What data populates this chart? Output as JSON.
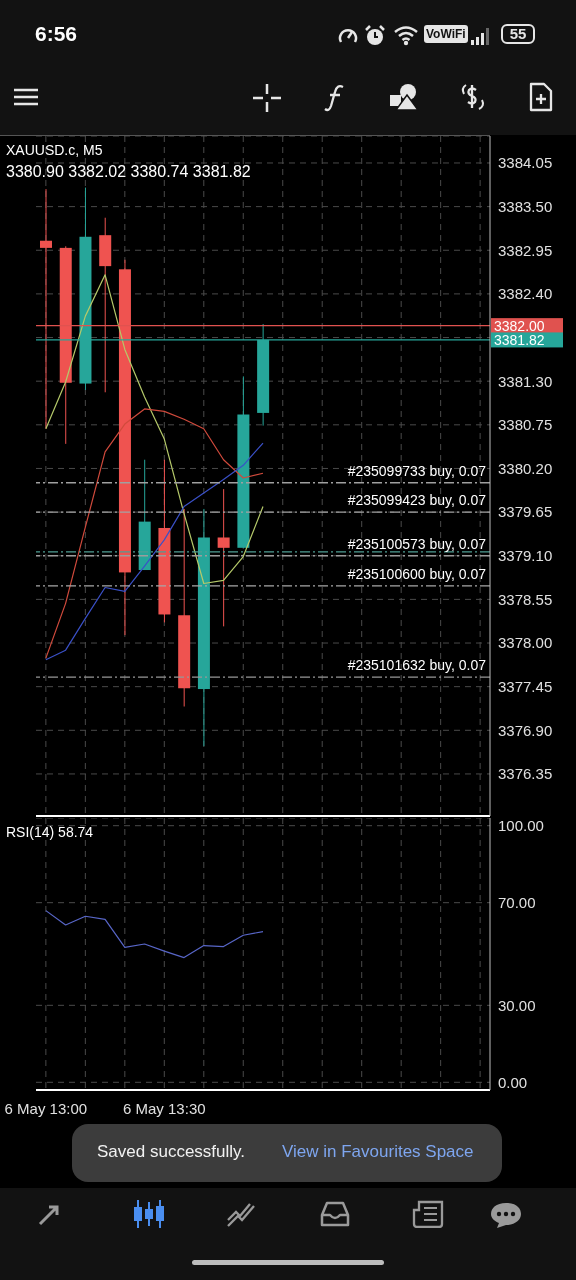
{
  "chart_data": [
    {
      "type": "candlestick",
      "title": "XAUUSD.c, M5",
      "subtitle": "3380.90 3382.02 3380.74 3381.82",
      "categories": [
        null,
        null,
        null,
        null,
        null,
        null,
        null,
        null,
        null,
        null,
        null,
        null,
        null,
        null,
        null,
        null,
        null,
        null,
        null,
        null,
        null,
        null,
        null
      ],
      "ohlc": [
        [
          3383.07,
          3383.72,
          3380.7,
          3382.98
        ],
        [
          3382.98,
          3383.0,
          3380.51,
          3381.28
        ],
        [
          3381.27,
          3383.74,
          3381.19,
          3383.12
        ],
        [
          3383.14,
          3383.36,
          3381.16,
          3382.75
        ],
        [
          3382.71,
          3382.83,
          3378.1,
          3378.89
        ],
        [
          3378.92,
          3380.31,
          3378.92,
          3379.53
        ],
        [
          3379.45,
          3380.31,
          3378.26,
          3378.36
        ],
        [
          3378.35,
          3379.69,
          3377.2,
          3377.43
        ],
        [
          3377.42,
          3379.69,
          3376.7,
          3379.33
        ],
        [
          3379.33,
          3379.94,
          3378.21,
          3379.2
        ],
        [
          3379.2,
          3381.36,
          3379.2,
          3380.88
        ],
        [
          3380.9,
          3382.02,
          3380.74,
          3381.82
        ],
        null,
        null,
        null,
        null,
        null,
        null,
        null,
        null,
        null,
        null,
        null
      ],
      "colors": [
        "#ef5350",
        "#ef5350",
        "#26a69a",
        "#ef5350",
        "#ef5350",
        "#26a69a",
        "#ef5350",
        "#ef5350",
        "#26a69a",
        "#ef5350",
        "#26a69a",
        "#26a69a",
        null,
        null,
        null,
        null,
        null,
        null,
        null,
        null,
        null,
        null,
        null
      ],
      "series": [
        {
          "type": "line",
          "color": "#b5c96a",
          "values": [
            3380.7,
            3381.29,
            3382.12,
            3382.64,
            3381.7,
            3381.1,
            3380.57,
            3379.63,
            3378.75,
            3378.79,
            3379.09,
            3379.72,
            null,
            null,
            null,
            null,
            null,
            null,
            null,
            null,
            null,
            null,
            null
          ]
        },
        {
          "type": "line",
          "color": "#d04a3c",
          "values": [
            3377.81,
            3378.5,
            3379.46,
            3380.41,
            3380.76,
            3380.95,
            3380.92,
            3380.82,
            3380.7,
            3380.31,
            3380.08,
            3380.14,
            null,
            null,
            null,
            null,
            null,
            null,
            null,
            null,
            null,
            null,
            null
          ]
        },
        {
          "type": "line",
          "color": "#3a50c8",
          "values": [
            3377.79,
            3377.91,
            3378.31,
            3378.7,
            3378.65,
            3378.97,
            3379.3,
            3379.72,
            3379.89,
            3380.06,
            3380.24,
            3380.52,
            null,
            null,
            null,
            null,
            null,
            null,
            null,
            null,
            null,
            null,
            null
          ]
        }
      ],
      "ylim": [
        3375.82,
        3384.39
      ],
      "yticks": [
        3384.05,
        {
          "value": 3383.5,
          "label": "3383.50"
        },
        3382.95,
        {
          "value": 3382.4,
          "label": "3382.40"
        },
        {
          "value": 3381.85,
          "label": null
        },
        {
          "value": 3381.3,
          "label": "3381.30"
        },
        3380.75,
        {
          "value": 3380.2,
          "label": "3380.20"
        },
        3379.65,
        {
          "value": 3379.1,
          "label": "3379.10"
        },
        3378.55,
        {
          "value": 3378,
          "label": "3378.00"
        },
        3377.45,
        {
          "value": 3376.9,
          "label": "3376.90"
        },
        3376.35
      ],
      "grid": true,
      "tick_labels": "y",
      "ref_lines": [
        {
          "axis": "y",
          "value": 3382,
          "label": "3382.00",
          "color": "#e0524f",
          "line_style": "solid"
        },
        {
          "axis": "y",
          "value": 3381.82,
          "label": "3381.82",
          "color": "#26a69a",
          "line_style": "solid"
        },
        {
          "axis": "y",
          "value": 3380.02,
          "label": "#235099733 buy, 0.07",
          "color": "#a0a0a0",
          "line_style": "dashed"
        },
        {
          "axis": "y",
          "value": 3379.65,
          "label": "#235099423 buy, 0.07",
          "color": "#a4a4a4",
          "line_style": "dashed"
        },
        {
          "axis": "y",
          "value": 3379.15,
          "color": "#4f9e94",
          "line_style": "dashed"
        },
        {
          "axis": "y",
          "value": 3379.1,
          "label": "#235100573 buy, 0.07",
          "color": "#9c9c9c",
          "line_style": "dashed"
        },
        {
          "axis": "y",
          "value": 3378.72,
          "label": "#235100600 buy, 0.07",
          "color": "#a8a8a8",
          "line_style": "dashed"
        },
        {
          "axis": "y",
          "value": 3377.57,
          "label": "#235101632 buy, 0.07",
          "color": "#989898",
          "line_style": "dashed"
        }
      ],
      "annotations": [
        "6:56",
        "VoWiFi",
        "55"
      ]
    },
    {
      "type": "line",
      "title": "RSI(14) 58.74",
      "categories": [
        "6 May 13:00",
        null,
        null,
        null,
        null,
        null,
        "6 May 13:30",
        null,
        null,
        null,
        null,
        null,
        null,
        null,
        null,
        null,
        null,
        null,
        null,
        null,
        null,
        null,
        null
      ],
      "series": [
        {
          "color": "#5866c8",
          "values": [
            66.9,
            61.3,
            64.7,
            63.5,
            52.6,
            53.9,
            51.1,
            48.6,
            53.3,
            52.9,
            57.3,
            58.74,
            null,
            null,
            null,
            null,
            null,
            null,
            null,
            null,
            null,
            null,
            null
          ]
        }
      ],
      "ylim": [
        -3,
        103
      ],
      "yticks": [
        {
          "value": 100,
          "label": "100.00"
        },
        {
          "value": 70,
          "label": "70.00"
        },
        {
          "value": 30,
          "label": "30.00"
        },
        {
          "value": 0,
          "label": "0.00"
        }
      ],
      "grid": true,
      "annotations": [
        "Saved successfully.",
        "View in Favourites Space"
      ]
    }
  ]
}
